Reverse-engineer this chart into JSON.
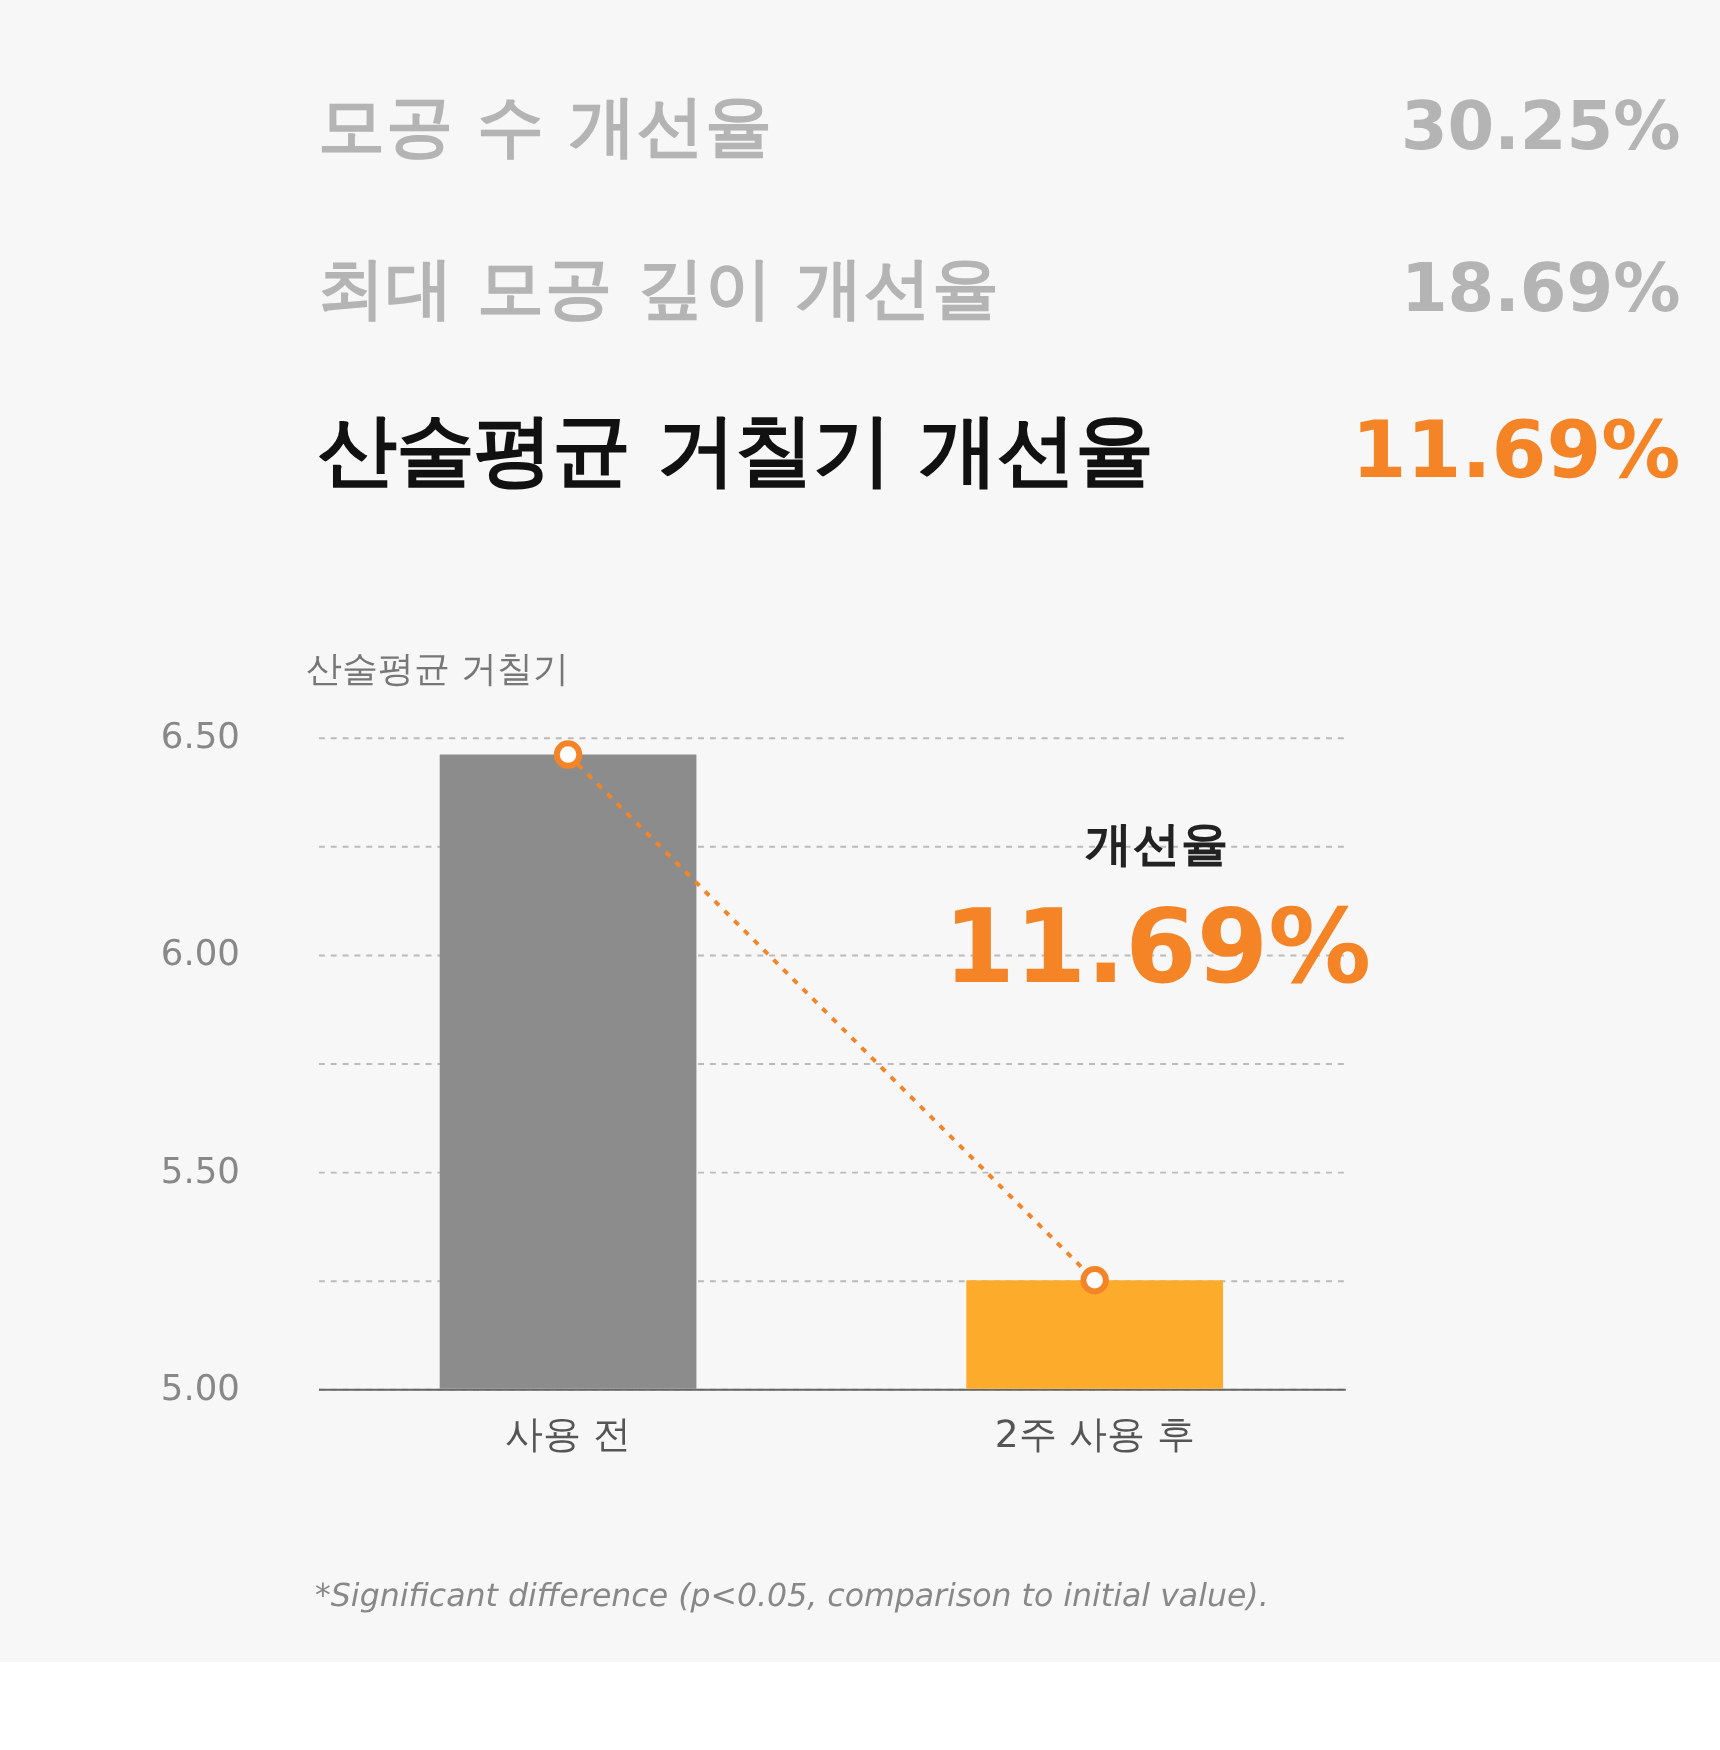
{
  "chart_data": {
    "type": "bar",
    "categories": [
      "사용 전",
      "2주 사용 후"
    ],
    "ylabel": "산술평균 거칠기",
    "series": [
      {
        "colors": [
          "#8c8c8c",
          "#fcac2a"
        ],
        "values": [
          6.46,
          5.25
        ]
      },
      {
        "type": "line",
        "color": "#f58426",
        "values": [
          6.46,
          5.25
        ],
        "marker": "circle",
        "line_style": "dotted"
      }
    ],
    "ylim": [
      5,
      6.5
    ],
    "yticks": [
      {
        "value": 5,
        "label": "5.00"
      },
      {
        "value": 5.25,
        "label": null
      },
      {
        "value": 5.5,
        "label": "5.50"
      },
      {
        "value": 5.75,
        "label": null
      },
      {
        "value": 6,
        "label": "6.00"
      },
      {
        "value": 6.25,
        "label": null
      },
      {
        "value": 6.5,
        "label": "6.50"
      }
    ],
    "grid": "y",
    "annotations": [
      "모공 수 개선율",
      "30.25%",
      "최대 모공 깊이 개선율",
      "18.69%",
      "산술평균 거칠기 개선율",
      "11.69%",
      "개선율",
      "11.69%",
      "*Significant difference (p<0.05, comparison to initial value)."
    ]
  }
}
